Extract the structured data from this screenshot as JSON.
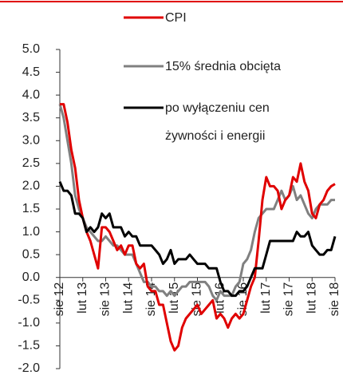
{
  "chart_data": {
    "type": "line",
    "categories": [
      "sie 12",
      null,
      null,
      null,
      null,
      null,
      "lut 13",
      null,
      null,
      null,
      null,
      null,
      "sie 13",
      null,
      null,
      null,
      null,
      null,
      "lut 14",
      null,
      null,
      null,
      null,
      null,
      "sie 14",
      null,
      null,
      null,
      null,
      null,
      "lut 15",
      null,
      null,
      null,
      null,
      null,
      "sie 15",
      null,
      null,
      null,
      null,
      null,
      "lut 16",
      null,
      null,
      null,
      null,
      null,
      "sie 16",
      null,
      null,
      null,
      null,
      null,
      "lut 17",
      null,
      null,
      null,
      null,
      null,
      "sie 17",
      null,
      null,
      null,
      null,
      null,
      "lut 18",
      null,
      null,
      null,
      null,
      null,
      "sie 18"
    ],
    "series": [
      {
        "name": "CPI",
        "color": "#e00000",
        "values": [
          3.8,
          3.8,
          3.4,
          2.8,
          2.4,
          1.7,
          1.3,
          1.0,
          0.8,
          0.5,
          0.2,
          1.1,
          1.1,
          1.0,
          0.8,
          0.6,
          0.7,
          0.5,
          0.7,
          0.7,
          0.3,
          0.2,
          0.3,
          -0.2,
          -0.3,
          -0.3,
          -0.6,
          -0.6,
          -1.0,
          -1.4,
          -1.6,
          -1.5,
          -1.1,
          -0.9,
          -0.8,
          -0.7,
          -0.6,
          -0.8,
          -0.7,
          -0.6,
          -0.5,
          -0.9,
          -0.8,
          -0.9,
          -1.1,
          -0.9,
          -0.8,
          -0.9,
          -0.8,
          -0.5,
          -0.2,
          0.0,
          0.8,
          1.7,
          2.2,
          2.0,
          2.0,
          1.9,
          1.5,
          1.7,
          1.8,
          2.2,
          2.1,
          2.5,
          2.1,
          1.9,
          1.4,
          1.3,
          1.6,
          1.7,
          1.9,
          2.0,
          2.05
        ]
      },
      {
        "name": "15% średnia obcięta",
        "color": "#808080",
        "values": [
          3.8,
          3.5,
          3.0,
          2.5,
          1.8,
          1.5,
          1.3,
          1.1,
          1.0,
          0.9,
          0.8,
          0.8,
          0.9,
          0.8,
          0.7,
          0.7,
          0.6,
          0.5,
          0.5,
          0.5,
          0.3,
          0.1,
          -0.1,
          -0.1,
          -0.2,
          -0.2,
          -0.3,
          -0.3,
          -0.4,
          -0.3,
          -0.4,
          -0.3,
          -0.2,
          -0.2,
          -0.1,
          -0.1,
          -0.1,
          -0.1,
          -0.1,
          -0.2,
          -0.4,
          -0.5,
          -0.3,
          -0.4,
          -0.4,
          -0.4,
          -0.2,
          -0.1,
          0.3,
          0.4,
          0.6,
          1.0,
          1.3,
          1.4,
          1.5,
          1.5,
          1.5,
          1.7,
          1.9,
          1.7,
          1.8,
          2.0,
          1.7,
          1.8,
          1.6,
          1.4,
          1.3,
          1.5,
          1.6,
          1.6,
          1.6,
          1.7,
          1.7
        ]
      },
      {
        "name": "po wyłączeniu cen żywności i energii",
        "color": "#000000",
        "values": [
          2.1,
          1.9,
          1.9,
          1.8,
          1.4,
          1.4,
          1.3,
          1.0,
          1.1,
          1.0,
          1.1,
          1.4,
          1.3,
          1.4,
          1.1,
          1.1,
          1.1,
          0.9,
          1.0,
          0.9,
          0.9,
          0.7,
          0.7,
          0.7,
          0.7,
          0.6,
          0.5,
          0.3,
          0.4,
          0.6,
          0.3,
          0.4,
          0.4,
          0.4,
          0.5,
          0.4,
          0.3,
          0.3,
          0.3,
          0.2,
          0.2,
          0.2,
          -0.1,
          -0.3,
          -0.3,
          -0.4,
          -0.4,
          -0.3,
          -0.3,
          -0.2,
          0.0,
          0.2,
          0.2,
          0.2,
          0.5,
          0.8,
          0.8,
          0.8,
          0.8,
          0.8,
          0.8,
          0.8,
          1.0,
          0.9,
          0.9,
          1.0,
          0.7,
          0.6,
          0.5,
          0.5,
          0.6,
          0.6,
          0.9
        ]
      }
    ],
    "ylim": [
      -2,
      5
    ],
    "yticks": [
      {
        "value": 5,
        "label": "5.0"
      },
      {
        "value": 4.5,
        "label": "4.5"
      },
      {
        "value": 4,
        "label": "4.0"
      },
      {
        "value": 3.5,
        "label": "3.5"
      },
      {
        "value": 3,
        "label": "3.0"
      },
      {
        "value": 2.5,
        "label": "2.5"
      },
      {
        "value": 2,
        "label": "2.0"
      },
      {
        "value": 1.5,
        "label": "1.5"
      },
      {
        "value": 1,
        "label": "1.0"
      },
      {
        "value": 0.5,
        "label": "0.5"
      },
      {
        "value": 0,
        "label": "0.0"
      },
      {
        "value": -0.5,
        "label": "-0.5"
      },
      {
        "value": -1,
        "label": "-1.0"
      },
      {
        "value": -1.5,
        "label": "-1.5"
      },
      {
        "value": -2,
        "label": "-2.0"
      }
    ]
  }
}
